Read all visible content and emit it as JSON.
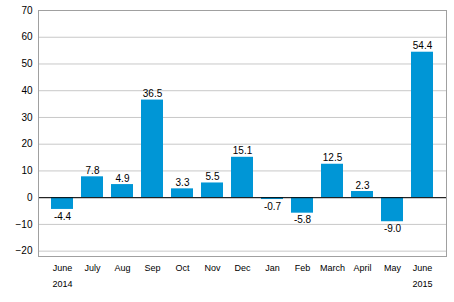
{
  "chart_data": {
    "type": "bar",
    "categories": [
      "June",
      "July",
      "Aug",
      "Sep",
      "Oct",
      "Nov",
      "Dec",
      "Jan",
      "Feb",
      "March",
      "April",
      "May",
      "June"
    ],
    "years": [
      "2014",
      null,
      null,
      null,
      null,
      null,
      null,
      null,
      null,
      null,
      null,
      null,
      "2015"
    ],
    "values": [
      -4.4,
      7.8,
      4.9,
      36.5,
      3.3,
      5.5,
      15.1,
      -0.7,
      -5.8,
      12.5,
      2.3,
      -9.0,
      54.4
    ],
    "value_labels": [
      "-4.4",
      "7.8",
      "4.9",
      "36.5",
      "3.3",
      "5.5",
      "15.1",
      "-0.7",
      "-5.8",
      "12.5",
      "2.3",
      "-9.0",
      "54.4"
    ],
    "color": "#0096d6",
    "ylim": [
      -22,
      70
    ],
    "yticks": [
      -20,
      -10,
      0,
      10,
      20,
      30,
      40,
      50,
      60,
      70
    ],
    "grid": true,
    "data_labels": true
  }
}
